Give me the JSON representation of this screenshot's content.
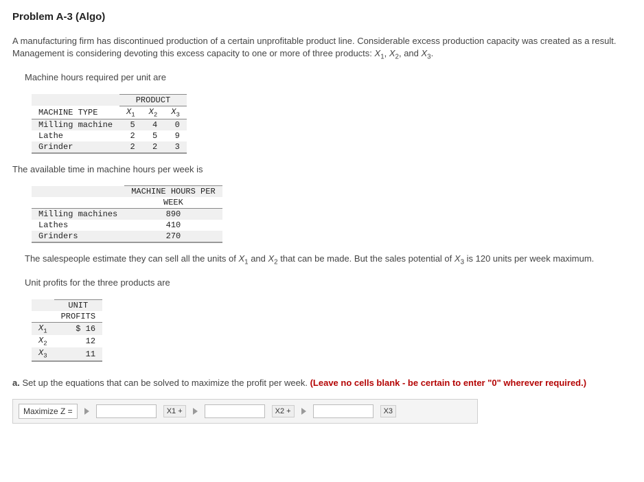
{
  "title": "Problem A-3 (Algo)",
  "intro": {
    "p1a": "A manufacturing firm has discontinued production of a certain unprofitable product line. Considerable excess production capacity was created as a result. Management is considering devoting this excess capacity to one or more of three products: ",
    "v1": "X",
    "s1": "1",
    "comma1": ", ",
    "v2": "X",
    "s2": "2",
    "comma2": ", and ",
    "v3": "X",
    "s3": "3",
    "period": "."
  },
  "line_mhpu": "Machine hours required per unit are",
  "table1": {
    "hdr_product": "PRODUCT",
    "hdr_machine": "MACHINE TYPE",
    "col_x": "X",
    "s1": "1",
    "s2": "2",
    "s3": "3",
    "rows": [
      {
        "label": "Milling machine",
        "x1": "5",
        "x2": "4",
        "x3": "0"
      },
      {
        "label": "Lathe",
        "x1": "2",
        "x2": "5",
        "x3": "9"
      },
      {
        "label": "Grinder",
        "x1": "2",
        "x2": "2",
        "x3": "3"
      }
    ]
  },
  "line_avail": "The available time in machine hours per week is",
  "table2": {
    "hdr1": "MACHINE HOURS PER",
    "hdr2": "WEEK",
    "rows": [
      {
        "label": "Milling machines",
        "val": "890"
      },
      {
        "label": "Lathes",
        "val": "410"
      },
      {
        "label": "Grinders",
        "val": "270"
      }
    ]
  },
  "sales": {
    "a": "The salespeople estimate they can sell all the units of ",
    "x1v": "X",
    "x1s": "1",
    "mid1": " and ",
    "x2v": "X",
    "x2s": "2",
    "mid2": " that can be made. But the sales potential of ",
    "x3v": "X",
    "x3s": "3",
    "b": " is 120 units per week maximum."
  },
  "line_profit": "Unit profits for the three products are",
  "table3": {
    "hdr1": "UNIT",
    "hdr2": "PROFITS",
    "rows": [
      {
        "v": "X",
        "s": "1",
        "val": "$ 16"
      },
      {
        "v": "X",
        "s": "2",
        "val": "12"
      },
      {
        "v": "X",
        "s": "3",
        "val": "11"
      }
    ]
  },
  "parta": {
    "prefix": "a.",
    "text": " Set up the equations that can be solved to maximize the profit per week. ",
    "warn": "(Leave no cells blank - be certain to enter \"0\" wherever required.)"
  },
  "answer": {
    "maxz": "Maximize Z =",
    "x1": "X1 +",
    "x2": "X2 +",
    "x3": "X3"
  }
}
